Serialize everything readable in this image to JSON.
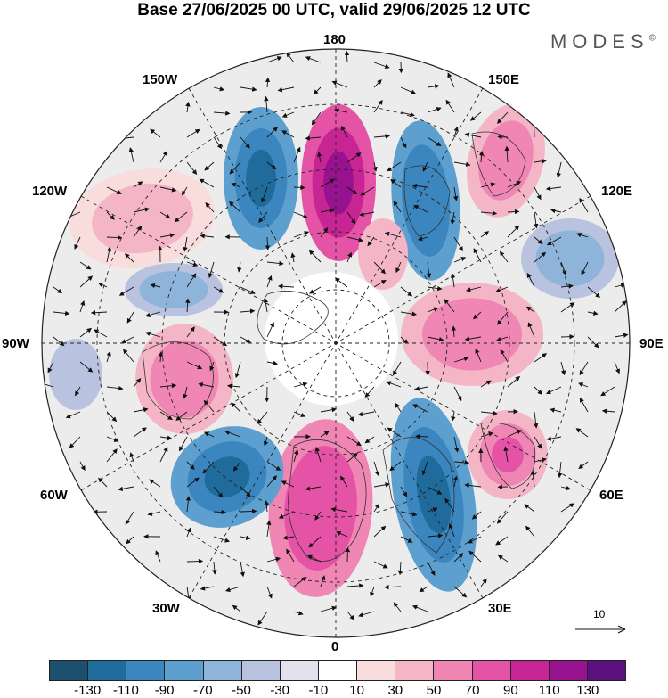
{
  "title": "Base 27/06/2025 00 UTC, valid 29/06/2025 12 UTC",
  "brand": "MODES",
  "brand_mark": "©",
  "longitude_labels": {
    "top": "180",
    "bottom": "0",
    "left": "90W",
    "right": "90E",
    "upper_left_1": "150W",
    "upper_left_2": "120W",
    "upper_right_1": "150E",
    "upper_right_2": "120E",
    "lower_left_1": "60W",
    "lower_left_2": "30W",
    "lower_right_1": "60E",
    "lower_right_2": "30E"
  },
  "reference_vector": {
    "label": "10"
  },
  "colorbar": {
    "colors": [
      "#1d4f6e",
      "#1f6b9c",
      "#3b86bf",
      "#5da0cf",
      "#8fb4d9",
      "#b9c3df",
      "#e4e1ef",
      "#ffffff",
      "#f9dcdc",
      "#f4b6c6",
      "#ef86b4",
      "#e553a6",
      "#c72593",
      "#97128e",
      "#5c1180"
    ],
    "tick_labels": [
      "-130",
      "-110",
      "-90",
      "-70",
      "-50",
      "-30",
      "-10",
      "10",
      "30",
      "50",
      "70",
      "90",
      "110",
      "130"
    ]
  }
}
